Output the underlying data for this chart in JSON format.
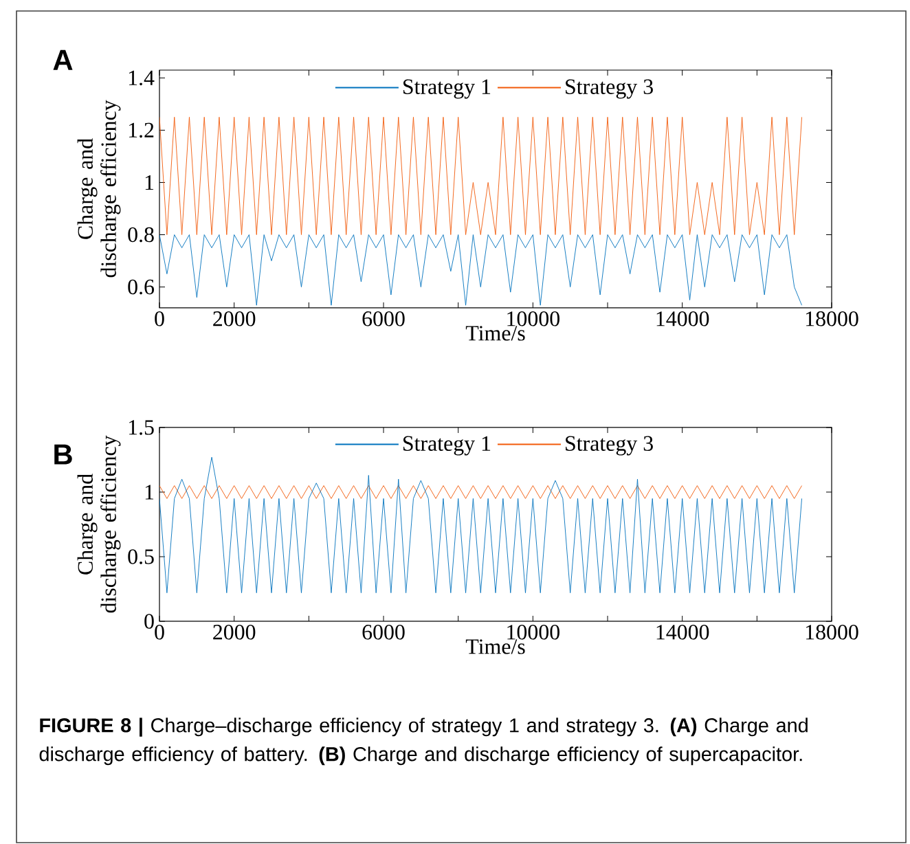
{
  "chart_data": [
    {
      "type": "line",
      "title": "A",
      "xlabel": "Time/s",
      "ylabel": "Charge and discharge efficiency",
      "x": [
        0,
        200,
        400,
        600,
        800,
        1000,
        1200,
        1400,
        1600,
        1800,
        2000,
        2200,
        2400,
        2600,
        2800,
        3000,
        3200,
        3400,
        3600,
        3800,
        4000,
        4200,
        4400,
        4600,
        4800,
        5000,
        5200,
        5400,
        5600,
        5800,
        6000,
        6200,
        6400,
        6600,
        6800,
        7000,
        7200,
        7400,
        7600,
        7800,
        8000,
        8200,
        8400,
        8600,
        8800,
        9000,
        9200,
        9400,
        9600,
        9800,
        10000,
        10200,
        10400,
        10600,
        10800,
        11000,
        11200,
        11400,
        11600,
        11800,
        12000,
        12200,
        12400,
        12600,
        12800,
        13000,
        13200,
        13400,
        13600,
        13800,
        14000,
        14200,
        14400,
        14600,
        14800,
        15000,
        15200,
        15400,
        15600,
        15800,
        16000,
        16200,
        16400,
        16600,
        16800,
        17000,
        17200
      ],
      "series": [
        {
          "name": "Strategy 1",
          "color": "#0072bd",
          "values": [
            0.8,
            0.65,
            0.8,
            0.75,
            0.8,
            0.56,
            0.8,
            0.75,
            0.8,
            0.6,
            0.8,
            0.75,
            0.8,
            0.53,
            0.8,
            0.7,
            0.8,
            0.75,
            0.8,
            0.6,
            0.8,
            0.75,
            0.8,
            0.53,
            0.8,
            0.75,
            0.8,
            0.62,
            0.8,
            0.75,
            0.8,
            0.57,
            0.8,
            0.75,
            0.8,
            0.6,
            0.8,
            0.75,
            0.8,
            0.66,
            0.8,
            0.53,
            0.8,
            0.6,
            0.8,
            0.75,
            0.8,
            0.58,
            0.8,
            0.75,
            0.8,
            0.53,
            0.8,
            0.75,
            0.8,
            0.6,
            0.8,
            0.75,
            0.8,
            0.57,
            0.8,
            0.75,
            0.8,
            0.65,
            0.8,
            0.75,
            0.8,
            0.58,
            0.8,
            0.75,
            0.8,
            0.55,
            0.8,
            0.6,
            0.8,
            0.75,
            0.8,
            0.62,
            0.8,
            0.75,
            0.8,
            0.57,
            0.8,
            0.75,
            0.8,
            0.6,
            0.53
          ]
        },
        {
          "name": "Strategy 3",
          "color": "#f25a0a",
          "values": [
            1.25,
            0.8,
            1.25,
            0.8,
            1.25,
            0.8,
            1.25,
            0.8,
            1.25,
            0.8,
            1.25,
            0.8,
            1.25,
            0.8,
            1.25,
            0.8,
            1.25,
            0.8,
            1.25,
            0.8,
            1.25,
            0.8,
            1.25,
            0.8,
            1.25,
            0.8,
            1.25,
            0.8,
            1.25,
            0.8,
            1.25,
            0.8,
            1.25,
            0.8,
            1.25,
            0.8,
            1.25,
            0.8,
            1.25,
            0.8,
            1.25,
            0.8,
            1,
            0.8,
            1,
            0.8,
            1.25,
            0.8,
            1.25,
            0.8,
            1.25,
            0.8,
            1.25,
            0.8,
            1.25,
            0.8,
            1.25,
            0.8,
            1.25,
            0.8,
            1.25,
            0.8,
            1.25,
            0.8,
            1.25,
            0.8,
            1.25,
            0.8,
            1.25,
            0.8,
            1.25,
            0.8,
            1,
            0.8,
            1,
            0.8,
            1.25,
            0.8,
            1.25,
            0.8,
            1,
            0.8,
            1.25,
            0.8,
            1.25,
            0.8,
            1.25
          ]
        }
      ],
      "xlim": [
        0,
        18000
      ],
      "ylim": [
        0.52,
        1.43
      ],
      "xticks": [
        0,
        2000,
        {
          "value": 4000,
          "label": null
        },
        6000,
        {
          "value": 8000,
          "label": null
        },
        10000,
        {
          "value": 12000,
          "label": null
        },
        14000,
        {
          "value": 16000,
          "label": null
        },
        18000
      ],
      "yticks": [
        0.6,
        0.8,
        1,
        1.2,
        1.4
      ],
      "legend": "top"
    },
    {
      "type": "line",
      "title": "B",
      "xlabel": "Time/s",
      "ylabel": "Charge and discharge efficiency",
      "x": [
        0,
        200,
        400,
        600,
        800,
        1000,
        1200,
        1400,
        1600,
        1800,
        2000,
        2200,
        2400,
        2600,
        2800,
        3000,
        3200,
        3400,
        3600,
        3800,
        4000,
        4200,
        4400,
        4600,
        4800,
        5000,
        5200,
        5400,
        5600,
        5800,
        6000,
        6200,
        6400,
        6600,
        6800,
        7000,
        7200,
        7400,
        7600,
        7800,
        8000,
        8200,
        8400,
        8600,
        8800,
        9000,
        9200,
        9400,
        9600,
        9800,
        10000,
        10200,
        10400,
        10600,
        10800,
        11000,
        11200,
        11400,
        11600,
        11800,
        12000,
        12200,
        12400,
        12600,
        12800,
        13000,
        13200,
        13400,
        13600,
        13800,
        14000,
        14200,
        14400,
        14600,
        14800,
        15000,
        15200,
        15400,
        15600,
        15800,
        16000,
        16200,
        16400,
        16600,
        16800,
        17000,
        17200
      ],
      "series": [
        {
          "name": "Strategy 1",
          "color": "#0072bd",
          "values": [
            0.95,
            0.22,
            0.95,
            1.1,
            0.95,
            0.22,
            0.95,
            1.27,
            0.95,
            0.22,
            0.95,
            0.22,
            0.95,
            0.22,
            0.95,
            0.22,
            0.95,
            0.22,
            0.95,
            0.22,
            0.95,
            1.07,
            0.95,
            0.22,
            0.95,
            0.22,
            0.95,
            0.22,
            1.13,
            0.22,
            0.95,
            0.22,
            1.1,
            0.22,
            0.95,
            1.09,
            0.95,
            0.22,
            0.95,
            0.22,
            0.95,
            0.22,
            0.95,
            0.22,
            0.95,
            0.22,
            0.95,
            0.22,
            0.95,
            0.22,
            0.95,
            0.22,
            0.95,
            1.09,
            0.95,
            0.22,
            0.95,
            0.22,
            0.95,
            0.22,
            0.95,
            0.22,
            0.95,
            0.22,
            1.1,
            0.22,
            0.95,
            0.22,
            0.95,
            0.22,
            0.95,
            0.22,
            0.95,
            0.22,
            0.95,
            0.22,
            0.95,
            0.22,
            0.95,
            0.22,
            0.95,
            0.22,
            0.95,
            0.22,
            0.95,
            0.22,
            0.95
          ]
        },
        {
          "name": "Strategy 3",
          "color": "#f25a0a",
          "values": [
            1.05,
            0.95,
            1.05,
            0.95,
            1.05,
            0.95,
            1.05,
            0.95,
            1.05,
            0.95,
            1.05,
            0.95,
            1.05,
            0.95,
            1.05,
            0.95,
            1.05,
            0.95,
            1.05,
            0.95,
            1.05,
            0.95,
            1.05,
            0.95,
            1.05,
            0.95,
            1.05,
            0.95,
            1.05,
            0.95,
            1.05,
            0.95,
            1.05,
            0.95,
            1.05,
            0.95,
            1.05,
            0.95,
            1.05,
            0.95,
            1.05,
            0.95,
            1.05,
            0.95,
            1.05,
            0.95,
            1.05,
            0.95,
            1.05,
            0.95,
            1.05,
            0.95,
            1.05,
            0.95,
            1.05,
            0.95,
            1.05,
            0.95,
            1.05,
            0.95,
            1.05,
            0.95,
            1.05,
            0.95,
            1.05,
            0.95,
            1.05,
            0.95,
            1.05,
            0.95,
            1.05,
            0.95,
            1.05,
            0.95,
            1.05,
            0.95,
            1.05,
            0.95,
            1.05,
            0.95,
            1.05,
            0.95,
            1.05,
            0.95,
            1.05,
            0.95,
            1.05
          ]
        }
      ],
      "xlim": [
        0,
        18000
      ],
      "ylim": [
        0,
        1.5
      ],
      "xticks": [
        0,
        2000,
        {
          "value": 4000,
          "label": null
        },
        6000,
        {
          "value": 8000,
          "label": null
        },
        10000,
        {
          "value": 12000,
          "label": null
        },
        14000,
        {
          "value": 16000,
          "label": null
        },
        18000
      ],
      "yticks": [
        0,
        0.5,
        1,
        1.5
      ],
      "legend": "top",
      "annotations": [
        "**FIGURE 8 |** Charge–discharge efficiency of strategy 1 and strategy 3. **(A)** Charge and discharge efficiency of battery. **(B)** Charge and discharge efficiency of supercapacitor."
      ]
    }
  ]
}
